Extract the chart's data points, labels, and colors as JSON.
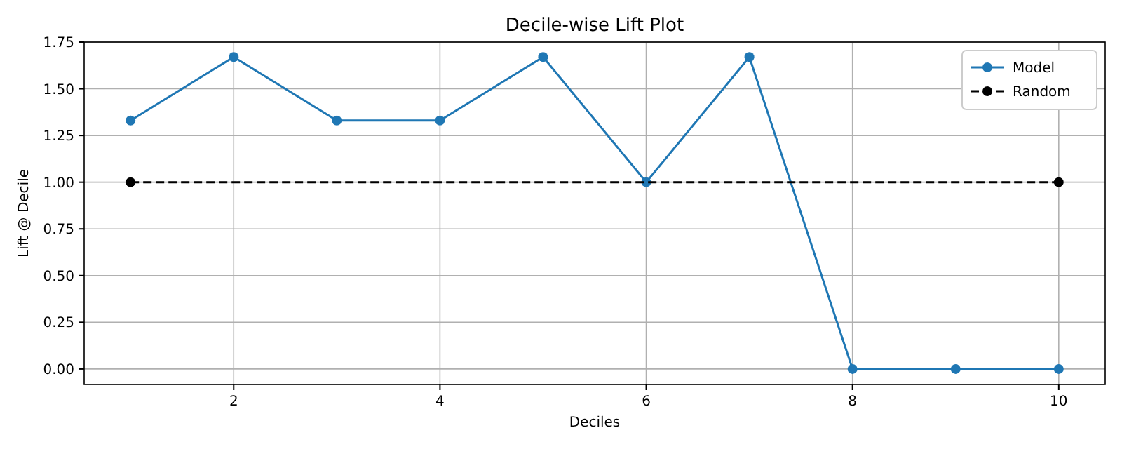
{
  "chart_data": {
    "type": "line",
    "title": "Decile-wise Lift Plot",
    "xlabel": "Deciles",
    "ylabel": "Lift @ Decile",
    "xlim": [
      0.55,
      10.45
    ],
    "xticks": [
      2,
      4,
      6,
      8,
      10
    ],
    "ylim": [
      -0.083,
      1.75
    ],
    "yticks": [
      {
        "value": 0,
        "label": "0.00"
      },
      {
        "value": 0.25,
        "label": "0.25"
      },
      {
        "value": 0.5,
        "label": "0.50"
      },
      {
        "value": 0.75,
        "label": "0.75"
      },
      {
        "value": 1,
        "label": "1.00"
      },
      {
        "value": 1.25,
        "label": "1.25"
      },
      {
        "value": 1.5,
        "label": "1.50"
      },
      {
        "value": 1.75,
        "label": "1.75"
      }
    ],
    "grid": true,
    "legend": "top right",
    "marker": "circle",
    "series": [
      {
        "name": "Model",
        "color": "#1f77b4",
        "line_style": "solid",
        "x": [
          1,
          2,
          3,
          4,
          5,
          6,
          7,
          8,
          9,
          10
        ],
        "values": [
          1.33,
          1.67,
          1.33,
          1.33,
          1.67,
          1.0,
          1.67,
          0,
          0,
          0
        ]
      },
      {
        "name": "Random",
        "color": "#000000",
        "line_style": "dashed",
        "x": [
          1,
          10
        ],
        "values": [
          1,
          1
        ]
      }
    ]
  }
}
